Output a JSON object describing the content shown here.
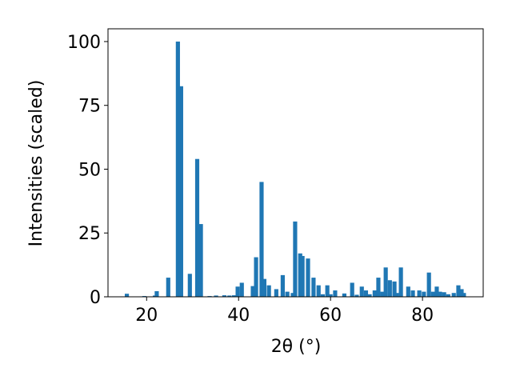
{
  "chart_data": {
    "type": "bar",
    "x": [
      15.7,
      19.5,
      21.8,
      22.2,
      24.7,
      26.8,
      27.5,
      29.4,
      31.0,
      31.8,
      33.7,
      35.1,
      36.9,
      38.0,
      39.0,
      39.8,
      40.7,
      43.1,
      43.8,
      45.0,
      45.6,
      46.6,
      48.2,
      49.6,
      50.6,
      51.8,
      52.3,
      53.4,
      53.9,
      55.1,
      56.3,
      57.4,
      58.3,
      59.3,
      60.0,
      61.0,
      63.0,
      64.7,
      65.7,
      66.8,
      67.7,
      68.5,
      69.6,
      70.4,
      71.3,
      72.0,
      72.9,
      73.9,
      74.4,
      75.3,
      76.9,
      77.9,
      79.3,
      80.3,
      81.4,
      82.3,
      83.1,
      83.8,
      84.7,
      85.6,
      86.8,
      87.8,
      88.5,
      89.0
    ],
    "values": [
      1.2,
      0.3,
      0.5,
      2.2,
      7.5,
      100,
      82.5,
      9,
      54,
      28.5,
      0.3,
      0.5,
      0.6,
      0.5,
      0.6,
      4,
      5.5,
      4.2,
      15.5,
      45,
      7,
      4.5,
      3,
      8.5,
      2,
      1.5,
      29.5,
      17,
      16,
      15,
      7.5,
      4.5,
      1,
      4.5,
      1,
      2.5,
      1.3,
      5.5,
      0.8,
      4,
      2.5,
      1,
      2.5,
      7.5,
      2,
      11.5,
      6.5,
      6,
      1.5,
      11.5,
      4,
      2.5,
      2.5,
      2,
      9.5,
      2,
      4,
      2,
      1.8,
      1,
      1.5,
      4.5,
      3,
      1.5
    ],
    "color": "#1f77b4",
    "xlim": [
      11.6,
      93.2
    ],
    "xticks": [
      20,
      40,
      60,
      80
    ],
    "ylim": [
      0,
      105
    ],
    "yticks": [
      0,
      25,
      50,
      75,
      100
    ],
    "xlabel": "2θ (°)",
    "ylabel": "Intensities (scaled)"
  }
}
